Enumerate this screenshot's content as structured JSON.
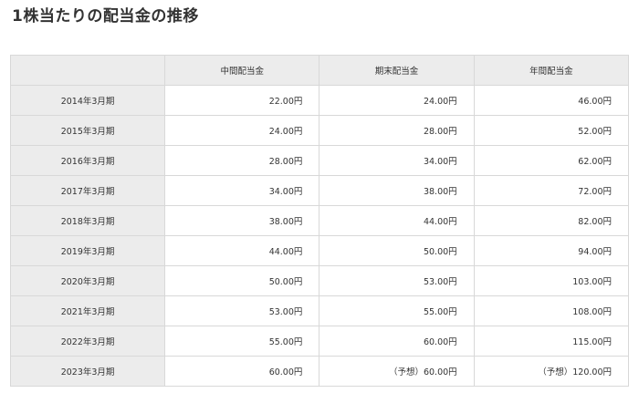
{
  "title": "1株当たりの配当金の推移",
  "headers": [
    "",
    "中間配当金",
    "期末配当金",
    "年間配当金"
  ],
  "rows": [
    [
      "2014年3月期",
      "22.00円",
      "24.00円",
      "46.00円"
    ],
    [
      "2015年3月期",
      "24.00円",
      "28.00円",
      "52.00円"
    ],
    [
      "2016年3月期",
      "28.00円",
      "34.00円",
      "62.00円"
    ],
    [
      "2017年3月期",
      "34.00円",
      "38.00円",
      "72.00円"
    ],
    [
      "2018年3月期",
      "38.00円",
      "44.00円",
      "82.00円"
    ],
    [
      "2019年3月期",
      "44.00円",
      "50.00円",
      "94.00円"
    ],
    [
      "2020年3月期",
      "50.00円",
      "53.00円",
      "103.00円"
    ],
    [
      "2021年3月期",
      "53.00円",
      "55.00円",
      "108.00円"
    ],
    [
      "2022年3月期",
      "55.00円",
      "60.00円",
      "115.00円"
    ],
    [
      "2023年3月期",
      "60.00円",
      "（予想）60.00円",
      "（予想）120.00円"
    ]
  ]
}
